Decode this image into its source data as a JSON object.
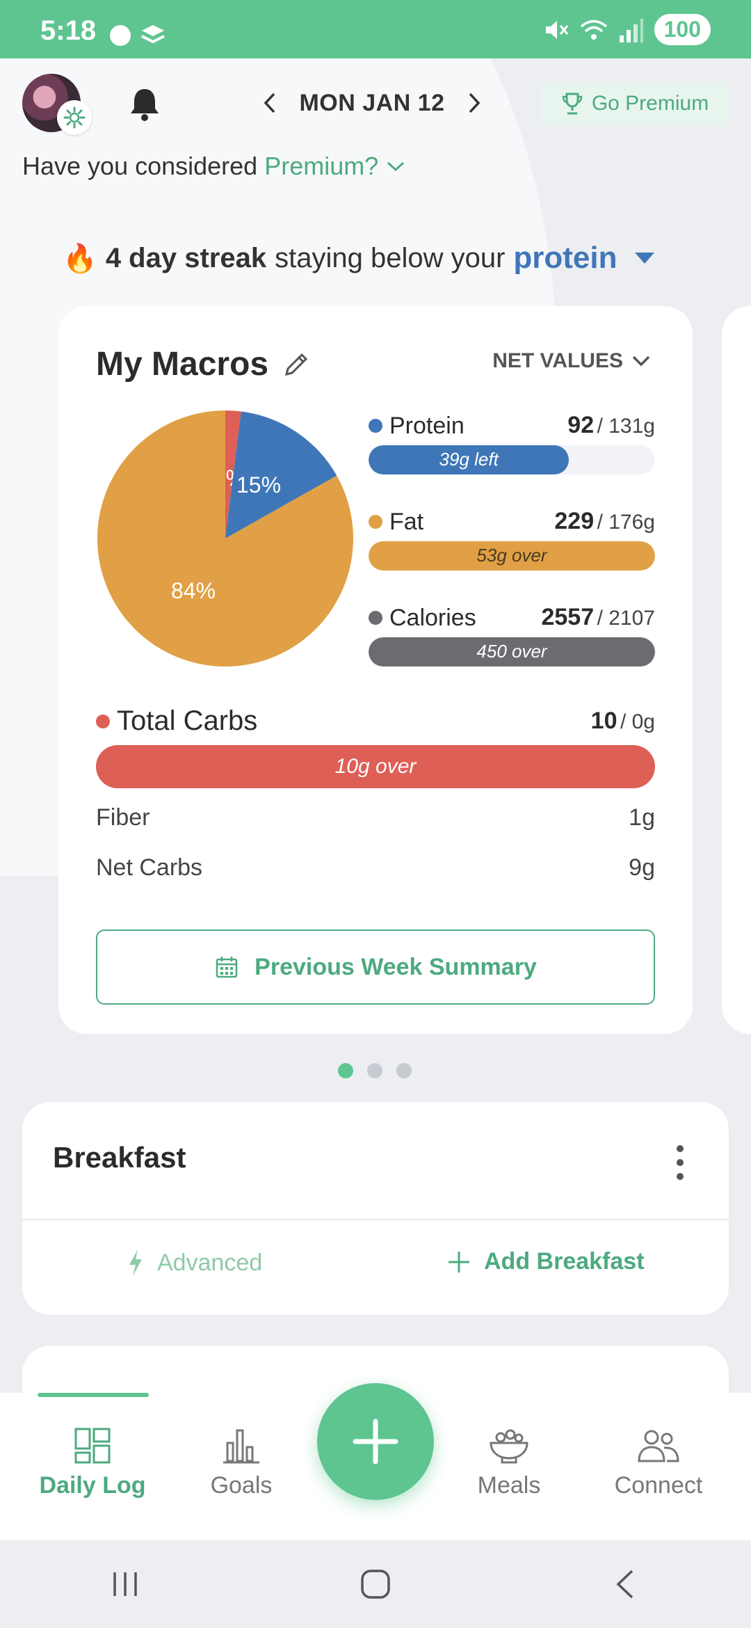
{
  "status_bar": {
    "time": "5:18",
    "battery": "100"
  },
  "header": {
    "date": "MON JAN 12",
    "premium_button": "Go Premium",
    "premium_prompt_prefix": "Have you considered",
    "premium_prompt_accent": "Premium?"
  },
  "streak": {
    "emoji": "🔥",
    "bold": "4 day streak",
    "middle": "staying below your",
    "macro": "protein"
  },
  "macros": {
    "title": "My Macros",
    "values_mode": "NET VALUES",
    "pie_labels": [
      "2%",
      "15%",
      "84%"
    ],
    "chart_data": {
      "type": "pie",
      "slices": [
        {
          "label": "Total Carbs",
          "value": 2,
          "color": "#de5f56"
        },
        {
          "label": "Protein",
          "value": 15,
          "color": "#3f76b8"
        },
        {
          "label": "Fat",
          "value": 84,
          "color": "#e1a045"
        }
      ]
    },
    "rows": [
      {
        "name": "Protein",
        "value": "92",
        "goal": "/ 131g",
        "bar_text": "39g left",
        "fill_pct": 70,
        "color": "#3f76b8",
        "text_color": "#ffffff"
      },
      {
        "name": "Fat",
        "value": "229",
        "goal": "/ 176g",
        "bar_text": "53g over",
        "fill_pct": 100,
        "color": "#e1a045",
        "text_color": "#4a3a20"
      },
      {
        "name": "Calories",
        "value": "2557",
        "goal": "/ 2107",
        "bar_text": "450 over",
        "fill_pct": 100,
        "color": "#6a6c70",
        "text_color": "#ffffff"
      }
    ],
    "carbs": {
      "name": "Total Carbs",
      "value": "10",
      "goal": "/ 0g",
      "bar_text": "10g over",
      "color": "#de5f56"
    },
    "fiber": {
      "label": "Fiber",
      "value": "1g"
    },
    "net_carbs": {
      "label": "Net Carbs",
      "value": "9g"
    },
    "week_summary_button": "Previous Week Summary"
  },
  "breakfast": {
    "title": "Breakfast",
    "advanced": "Advanced",
    "add": "Add Breakfast"
  },
  "nav": {
    "items": [
      {
        "label": "Daily Log"
      },
      {
        "label": "Goals"
      },
      {
        "label": "Meals"
      },
      {
        "label": "Connect"
      }
    ]
  },
  "colors": {
    "accent": "#5ec591",
    "accent_text": "#4caa7e"
  }
}
